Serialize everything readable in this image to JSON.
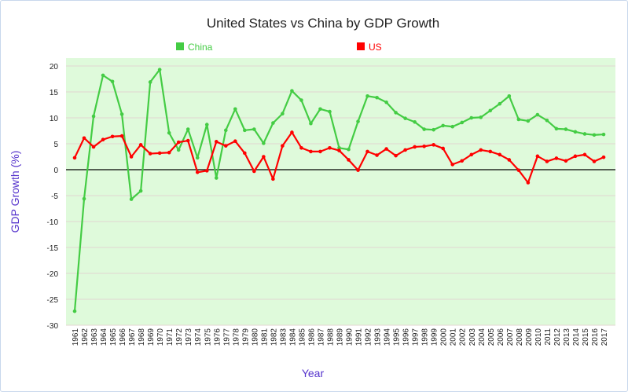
{
  "chart_data": {
    "type": "line",
    "title": "United States vs China by GDP Growth",
    "xlabel": "Year",
    "ylabel": "GDP Growth (%)",
    "ylim": [
      -30,
      20
    ],
    "yticks": [
      20,
      15,
      10,
      5,
      0,
      -5,
      -10,
      -15,
      -20,
      -25,
      -30
    ],
    "grid": true,
    "legend_position": "top",
    "background": "#dffadb",
    "x": [
      1961,
      1962,
      1963,
      1964,
      1965,
      1966,
      1967,
      1968,
      1969,
      1970,
      1971,
      1972,
      1973,
      1974,
      1975,
      1976,
      1977,
      1978,
      1979,
      1980,
      1981,
      1982,
      1983,
      1984,
      1985,
      1986,
      1987,
      1988,
      1989,
      1990,
      1991,
      1992,
      1993,
      1994,
      1995,
      1996,
      1997,
      1998,
      1999,
      2000,
      2001,
      2002,
      2003,
      2004,
      2005,
      2006,
      2007,
      2008,
      2009,
      2010,
      2011,
      2012,
      2013,
      2014,
      2015,
      2016,
      2017
    ],
    "series": [
      {
        "name": "China",
        "color": "#44cc44",
        "values": [
          -27.3,
          -5.6,
          10.3,
          18.2,
          17.0,
          10.7,
          -5.7,
          -4.1,
          16.9,
          19.3,
          7.1,
          3.8,
          7.8,
          2.3,
          8.7,
          -1.6,
          7.6,
          11.7,
          7.6,
          7.8,
          5.1,
          9.0,
          10.8,
          15.2,
          13.4,
          8.9,
          11.7,
          11.2,
          4.2,
          3.9,
          9.3,
          14.2,
          13.9,
          13.0,
          11.0,
          9.9,
          9.2,
          7.8,
          7.7,
          8.5,
          8.3,
          9.1,
          10.0,
          10.1,
          11.4,
          12.7,
          14.2,
          9.7,
          9.4,
          10.6,
          9.5,
          7.9,
          7.8,
          7.3,
          6.9,
          6.7,
          6.8
        ]
      },
      {
        "name": "US",
        "color": "#ff0000",
        "values": [
          2.3,
          6.1,
          4.4,
          5.8,
          6.4,
          6.5,
          2.5,
          4.8,
          3.1,
          3.2,
          3.3,
          5.3,
          5.6,
          -0.5,
          -0.2,
          5.4,
          4.6,
          5.5,
          3.2,
          -0.3,
          2.5,
          -1.8,
          4.6,
          7.2,
          4.2,
          3.5,
          3.5,
          4.2,
          3.7,
          1.9,
          -0.1,
          3.5,
          2.8,
          4.0,
          2.7,
          3.8,
          4.4,
          4.5,
          4.8,
          4.1,
          1.0,
          1.7,
          2.9,
          3.8,
          3.5,
          2.9,
          1.9,
          -0.1,
          -2.5,
          2.6,
          1.6,
          2.2,
          1.7,
          2.6,
          2.9,
          1.6,
          2.4
        ]
      }
    ]
  }
}
